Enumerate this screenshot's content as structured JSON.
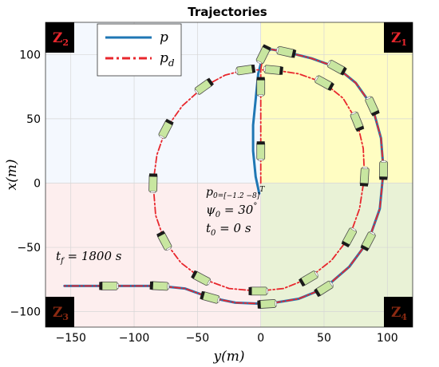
{
  "chart_data": {
    "type": "line",
    "title": "Trajectories",
    "xlabel": "y(m)",
    "ylabel": "x(m)",
    "xlim": [
      -170,
      120
    ],
    "ylim": [
      -112,
      125
    ],
    "x_ticks": [
      -150,
      -100,
      -50,
      0,
      50,
      100
    ],
    "y_ticks": [
      -100,
      -50,
      0,
      50,
      100
    ],
    "grid": true,
    "legend": {
      "placement": "top-left",
      "entries": [
        {
          "label": "p",
          "color": "#1f77b4",
          "style": "solid"
        },
        {
          "label": "p_d",
          "color": "#e8272d",
          "style": "dash-dot"
        }
      ]
    },
    "zones": [
      {
        "label": "Z",
        "sub": "1",
        "quadrant": "top-right",
        "color": "#fffdc2"
      },
      {
        "label": "Z",
        "sub": "2",
        "quadrant": "top-left",
        "color": "#f4f8fe"
      },
      {
        "label": "Z",
        "sub": "3",
        "quadrant": "bottom-left",
        "color": "#fdeeee"
      },
      {
        "label": "Z",
        "sub": "4",
        "quadrant": "bottom-right",
        "color": "#e9f2d6"
      }
    ],
    "annotations": {
      "initial": {
        "p0": "p",
        "p0_sub": "0=[−1.2   −8]",
        "p0_sup": "T",
        "psi0": "ψ",
        "psi0_sub": "0",
        "psi0_val": " = 30",
        "psi0_deg": "°",
        "t0": "t",
        "t0_sub": "0",
        "t0_val": " = 0 s"
      },
      "final": {
        "tf": "t",
        "tf_sub": "f",
        "tf_val": " = 1800 s"
      }
    },
    "series": [
      {
        "name": "p",
        "color": "#1f77b4",
        "points": [
          [
            -1.2,
            -8
          ],
          [
            -4,
            5
          ],
          [
            -6,
            25
          ],
          [
            -6,
            45
          ],
          [
            -4,
            65
          ],
          [
            -2,
            85
          ],
          [
            2,
            100
          ],
          [
            8,
            104
          ],
          [
            20,
            102
          ],
          [
            40,
            97
          ],
          [
            60,
            90
          ],
          [
            75,
            78
          ],
          [
            88,
            60
          ],
          [
            95,
            35
          ],
          [
            97,
            10
          ],
          [
            94,
            -20
          ],
          [
            85,
            -45
          ],
          [
            70,
            -65
          ],
          [
            50,
            -82
          ],
          [
            30,
            -90
          ],
          [
            5,
            -94
          ],
          [
            -20,
            -93
          ],
          [
            -40,
            -89
          ],
          [
            -60,
            -82
          ],
          [
            -80,
            -80
          ],
          [
            -100,
            -80
          ],
          [
            -120,
            -80
          ],
          [
            -140,
            -80
          ],
          [
            -155,
            -80
          ]
        ]
      },
      {
        "name": "p_d",
        "color": "#e8272d",
        "points": [
          [
            0,
            0
          ],
          [
            0,
            25
          ],
          [
            0,
            50
          ],
          [
            0,
            75
          ],
          [
            0,
            88
          ],
          [
            10,
            88
          ],
          [
            30,
            85
          ],
          [
            50,
            78
          ],
          [
            65,
            66
          ],
          [
            76,
            48
          ],
          [
            81,
            27
          ],
          [
            82,
            5
          ],
          [
            78,
            -20
          ],
          [
            70,
            -42
          ],
          [
            56,
            -60
          ],
          [
            38,
            -74
          ],
          [
            18,
            -82
          ],
          [
            -2,
            -84
          ],
          [
            -25,
            -82
          ],
          [
            -47,
            -74
          ],
          [
            -63,
            -62
          ],
          [
            -76,
            -45
          ],
          [
            -83,
            -25
          ],
          [
            -85,
            0
          ],
          [
            -82,
            22
          ],
          [
            -75,
            42
          ],
          [
            -62,
            60
          ],
          [
            -45,
            75
          ],
          [
            -28,
            84
          ],
          [
            -12,
            88
          ],
          [
            0,
            88
          ],
          [
            2,
            100
          ],
          [
            8,
            104
          ],
          [
            20,
            102
          ],
          [
            40,
            97
          ],
          [
            60,
            90
          ],
          [
            75,
            78
          ],
          [
            88,
            60
          ],
          [
            95,
            35
          ],
          [
            97,
            10
          ],
          [
            94,
            -20
          ],
          [
            85,
            -45
          ],
          [
            70,
            -65
          ],
          [
            50,
            -82
          ],
          [
            30,
            -90
          ],
          [
            5,
            -94
          ],
          [
            -20,
            -93
          ],
          [
            -40,
            -89
          ],
          [
            -60,
            -82
          ],
          [
            -80,
            -80
          ],
          [
            -100,
            -80
          ],
          [
            -120,
            -80
          ],
          [
            -140,
            -80
          ],
          [
            -155,
            -80
          ]
        ]
      }
    ]
  }
}
